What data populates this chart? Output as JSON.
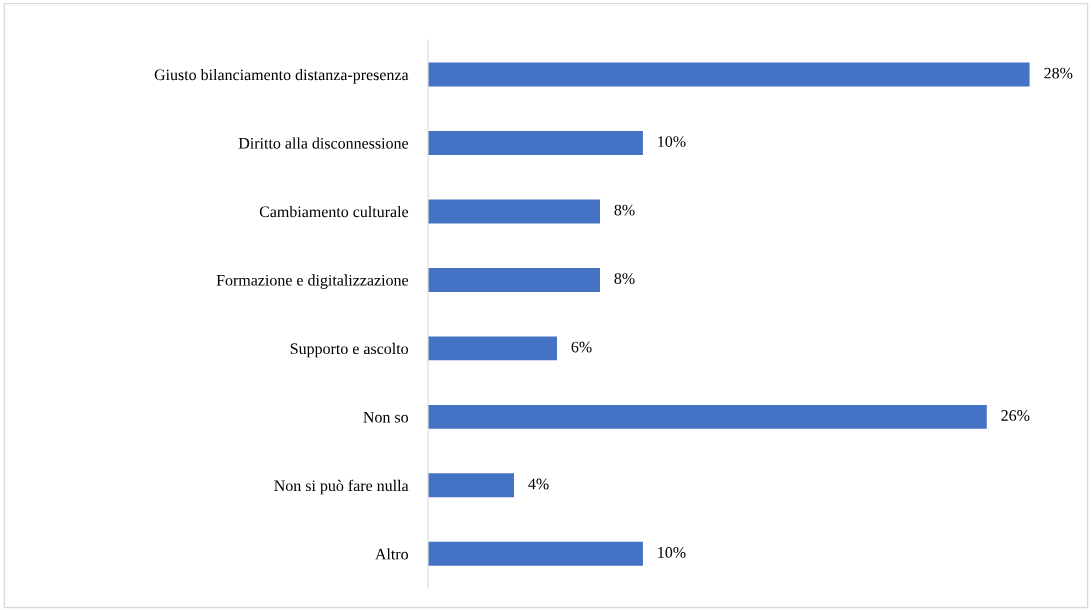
{
  "chart_data": {
    "type": "bar",
    "orientation": "horizontal",
    "categories": [
      "Giusto bilanciamento distanza-presenza",
      "Diritto alla disconnessione",
      "Cambiamento culturale",
      "Formazione e digitalizzazione",
      "Supporto e ascolto",
      "Non so",
      "Non si può fare nulla",
      "Altro"
    ],
    "values": [
      28,
      10,
      8,
      8,
      6,
      26,
      4,
      10
    ],
    "value_labels": [
      "28%",
      "10%",
      "8%",
      "8%",
      "6%",
      "26%",
      "4%",
      "10%"
    ],
    "color": "#4472c4",
    "grid": false,
    "legend": false
  }
}
